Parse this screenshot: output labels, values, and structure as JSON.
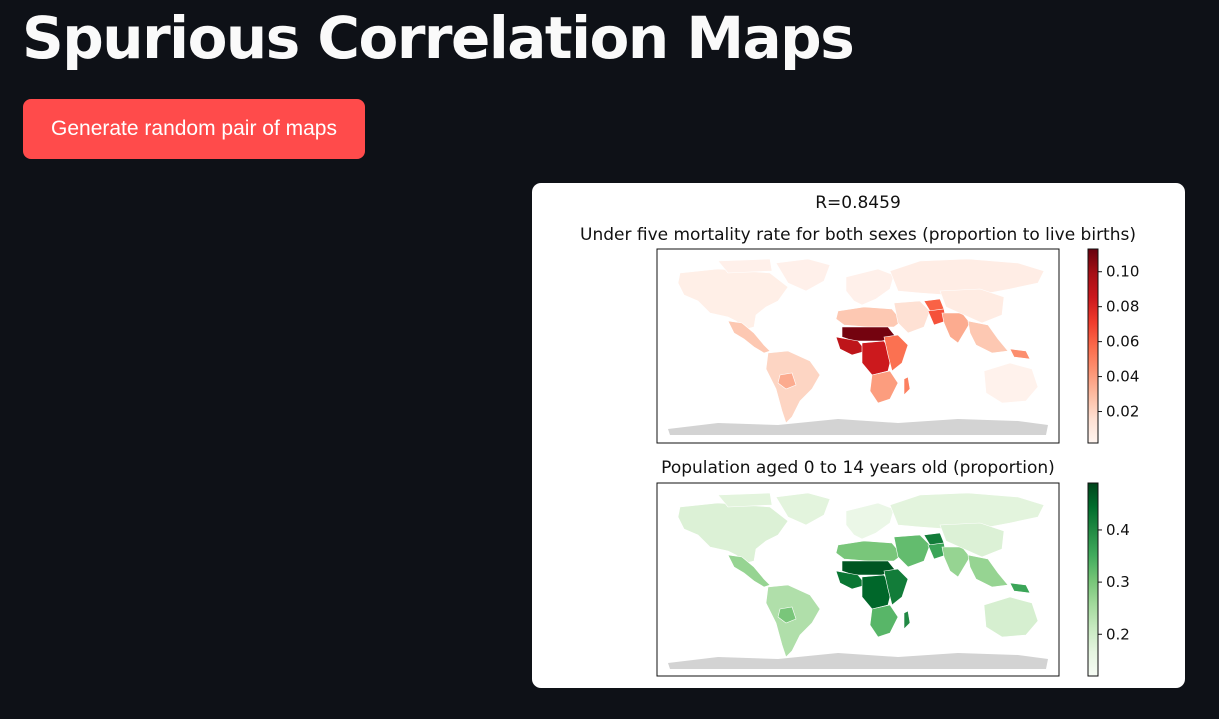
{
  "app": {
    "title": "Spurious Correlation Maps",
    "button_label": "Generate random pair of maps"
  },
  "colors": {
    "background": "#0e1117",
    "button": "#ff4b4b",
    "map_no_data": "#d3d3d3"
  },
  "chart_data": [
    {
      "type": "heatmap",
      "subtype": "choropleth world map",
      "suptitle": "R=0.8459",
      "title": "Under five mortality rate for both sexes (proportion to live births)",
      "colormap": "Reds",
      "colorbar": {
        "ticks": [
          0.02,
          0.04,
          0.06,
          0.08,
          0.1
        ],
        "tick_labels": [
          "0.02",
          "0.04",
          "0.06",
          "0.08",
          "0.10"
        ],
        "range": [
          0.002,
          0.113
        ]
      },
      "regions": [
        {
          "region": "North America",
          "level": 0.006
        },
        {
          "region": "Greenland / Arctic",
          "level": 0.005
        },
        {
          "region": "Central America",
          "level": 0.025
        },
        {
          "region": "South America",
          "level": 0.02
        },
        {
          "region": "Bolivia",
          "level": 0.035
        },
        {
          "region": "Europe",
          "level": 0.005
        },
        {
          "region": "Russia",
          "level": 0.007
        },
        {
          "region": "North Africa",
          "level": 0.025
        },
        {
          "region": "Sahel",
          "level": 0.11
        },
        {
          "region": "West Africa",
          "level": 0.09
        },
        {
          "region": "Central Africa",
          "level": 0.085
        },
        {
          "region": "East Africa",
          "level": 0.055
        },
        {
          "region": "Southern Africa",
          "level": 0.04
        },
        {
          "region": "Madagascar",
          "level": 0.05
        },
        {
          "region": "Middle East",
          "level": 0.015
        },
        {
          "region": "Afghanistan",
          "level": 0.06
        },
        {
          "region": "Pakistan",
          "level": 0.065
        },
        {
          "region": "India",
          "level": 0.035
        },
        {
          "region": "China",
          "level": 0.008
        },
        {
          "region": "Southeast Asia",
          "level": 0.025
        },
        {
          "region": "Papua New Guinea",
          "level": 0.045
        },
        {
          "region": "Australia",
          "level": 0.004
        }
      ]
    },
    {
      "type": "heatmap",
      "subtype": "choropleth world map",
      "title": "Population aged 0 to 14 years old (proportion)",
      "colormap": "Greens",
      "colorbar": {
        "ticks": [
          0.2,
          0.3,
          0.4
        ],
        "tick_labels": [
          "0.2",
          "0.3",
          "0.4"
        ],
        "range": [
          0.12,
          0.49
        ]
      },
      "regions": [
        {
          "region": "North America",
          "level": 0.18
        },
        {
          "region": "Greenland / Arctic",
          "level": 0.17
        },
        {
          "region": "Central America",
          "level": 0.27
        },
        {
          "region": "South America",
          "level": 0.24
        },
        {
          "region": "Bolivia",
          "level": 0.3
        },
        {
          "region": "Europe",
          "level": 0.15
        },
        {
          "region": "Russia",
          "level": 0.17
        },
        {
          "region": "North Africa",
          "level": 0.3
        },
        {
          "region": "Sahel",
          "level": 0.47
        },
        {
          "region": "West Africa",
          "level": 0.43
        },
        {
          "region": "Central Africa",
          "level": 0.45
        },
        {
          "region": "East Africa",
          "level": 0.42
        },
        {
          "region": "Southern Africa",
          "level": 0.33
        },
        {
          "region": "Madagascar",
          "level": 0.4
        },
        {
          "region": "Middle East",
          "level": 0.32
        },
        {
          "region": "Afghanistan",
          "level": 0.42
        },
        {
          "region": "Pakistan",
          "level": 0.36
        },
        {
          "region": "India",
          "level": 0.27
        },
        {
          "region": "China",
          "level": 0.18
        },
        {
          "region": "Southeast Asia",
          "level": 0.27
        },
        {
          "region": "Papua New Guinea",
          "level": 0.36
        },
        {
          "region": "Australia",
          "level": 0.19
        }
      ]
    }
  ]
}
